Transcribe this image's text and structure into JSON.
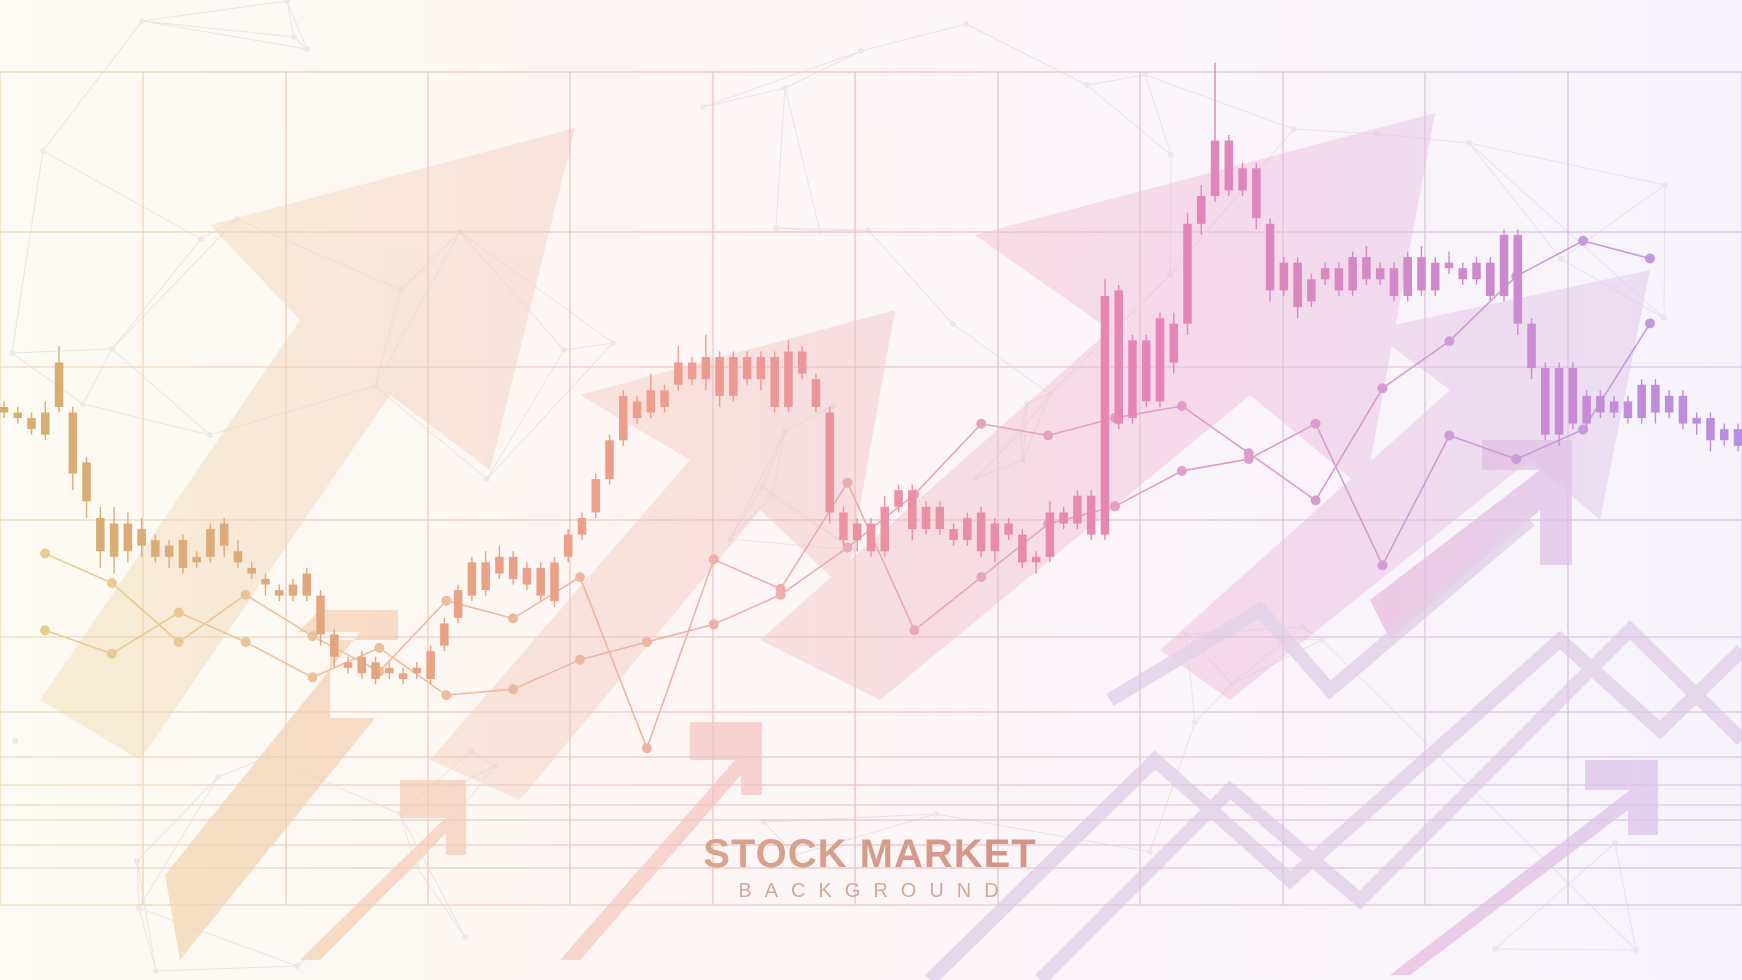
{
  "title": "STOCK MARKET",
  "subtitle": "BACKGROUND",
  "colors": {
    "gold": "#d4b070",
    "salmon": "#ee9e8c",
    "pink": "#e585b6",
    "purple": "#b98ee0",
    "grid": "#e3cbd6"
  },
  "chart_data": [
    {
      "type": "candlestick",
      "title": "",
      "xlabel": "",
      "ylabel": "",
      "axes_printed": false,
      "grid": true,
      "legend": "none",
      "ylim": [
        0,
        100
      ],
      "candles": [
        [
          51,
          50,
          52,
          49
        ],
        [
          50,
          49,
          51,
          48
        ],
        [
          49,
          47,
          50,
          46
        ],
        [
          46,
          50,
          52,
          45
        ],
        [
          51,
          59,
          62,
          50
        ],
        [
          50,
          39,
          51,
          36
        ],
        [
          41,
          34,
          42,
          31
        ],
        [
          31,
          25,
          33,
          22
        ],
        [
          30,
          24,
          33,
          21
        ],
        [
          30,
          25,
          32,
          23
        ],
        [
          26,
          29,
          31,
          24
        ],
        [
          27,
          24,
          28,
          23
        ],
        [
          24,
          26,
          27,
          22
        ],
        [
          27,
          22,
          28,
          21
        ],
        [
          24,
          23,
          25,
          22
        ],
        [
          24,
          29,
          30,
          23
        ],
        [
          30,
          26,
          31,
          24
        ],
        [
          25,
          23,
          27,
          22
        ],
        [
          21,
          22,
          23,
          20
        ],
        [
          20,
          19,
          21,
          17
        ],
        [
          17,
          18,
          19,
          16
        ],
        [
          17,
          19,
          20,
          16
        ],
        [
          21,
          17,
          22,
          16
        ],
        [
          17,
          10,
          18,
          8
        ],
        [
          10,
          6,
          11,
          4
        ],
        [
          5,
          4,
          6,
          3
        ],
        [
          6,
          3,
          7,
          2
        ],
        [
          5,
          2,
          6,
          1
        ],
        [
          4,
          3,
          5,
          2
        ],
        [
          3,
          2,
          4,
          1
        ],
        [
          3,
          4,
          5,
          2
        ],
        [
          2,
          7,
          8,
          1
        ],
        [
          8,
          12,
          13,
          7
        ],
        [
          13,
          18,
          19,
          12
        ],
        [
          17,
          23,
          24,
          16
        ],
        [
          23,
          18,
          25,
          17
        ],
        [
          21,
          24,
          26,
          20
        ],
        [
          24,
          20,
          25,
          19
        ],
        [
          19,
          22,
          23,
          18
        ],
        [
          22,
          17,
          23,
          16
        ],
        [
          16,
          23,
          24,
          15
        ],
        [
          24,
          28,
          29,
          23
        ],
        [
          28,
          31,
          32,
          27
        ],
        [
          32,
          38,
          39,
          31
        ],
        [
          38,
          45,
          46,
          37
        ],
        [
          45,
          53,
          54,
          44
        ],
        [
          52,
          49,
          53,
          48
        ],
        [
          50,
          54,
          57,
          49
        ],
        [
          54,
          51,
          55,
          50
        ],
        [
          55,
          59,
          62,
          54
        ],
        [
          59,
          56,
          60,
          55
        ],
        [
          56,
          60,
          64,
          54
        ],
        [
          60,
          53,
          61,
          51
        ],
        [
          53,
          60,
          61,
          52
        ],
        [
          60,
          56,
          61,
          55
        ],
        [
          56,
          60,
          61,
          54
        ],
        [
          60,
          51,
          61,
          50
        ],
        [
          51,
          61,
          63,
          50
        ],
        [
          61,
          57,
          62,
          56
        ],
        [
          56,
          51,
          57,
          50
        ],
        [
          50,
          32,
          51,
          30
        ],
        [
          32,
          27,
          33,
          26
        ],
        [
          27,
          30,
          31,
          25
        ],
        [
          30,
          25,
          31,
          24
        ],
        [
          25,
          33,
          35,
          24
        ],
        [
          33,
          36,
          37,
          32
        ],
        [
          36,
          29,
          37,
          27
        ],
        [
          29,
          33,
          34,
          28
        ],
        [
          33,
          29,
          34,
          28
        ],
        [
          29,
          27,
          30,
          26
        ],
        [
          27,
          31,
          32,
          26
        ],
        [
          32,
          25,
          33,
          24
        ],
        [
          25,
          30,
          31,
          23
        ],
        [
          30,
          28,
          31,
          27
        ],
        [
          28,
          23,
          29,
          22
        ],
        [
          23,
          24,
          25,
          21
        ],
        [
          24,
          32,
          34,
          23
        ],
        [
          32,
          30,
          33,
          29
        ],
        [
          30,
          35,
          36,
          29
        ],
        [
          35,
          28,
          36,
          27
        ],
        [
          28,
          71,
          74,
          27
        ],
        [
          72,
          48,
          73,
          47
        ],
        [
          49,
          63,
          64,
          48
        ],
        [
          63,
          52,
          64,
          51
        ],
        [
          52,
          67,
          68,
          51
        ],
        [
          59,
          66,
          68,
          57
        ],
        [
          66,
          84,
          86,
          64
        ],
        [
          84,
          89,
          91,
          82
        ],
        [
          89,
          99,
          113,
          88
        ],
        [
          99,
          90,
          100,
          89
        ],
        [
          90,
          94,
          95,
          89
        ],
        [
          94,
          85,
          95,
          83
        ],
        [
          84,
          72,
          85,
          70
        ],
        [
          72,
          77,
          78,
          71
        ],
        [
          77,
          69,
          78,
          67
        ],
        [
          70,
          74,
          75,
          69
        ],
        [
          74,
          76,
          77,
          73
        ],
        [
          76,
          72,
          77,
          71
        ],
        [
          72,
          78,
          79,
          71
        ],
        [
          78,
          74,
          80,
          73
        ],
        [
          74,
          76,
          77,
          73
        ],
        [
          76,
          71,
          77,
          70
        ],
        [
          71,
          78,
          79,
          70
        ],
        [
          78,
          72,
          80,
          71
        ],
        [
          72,
          77,
          78,
          71
        ],
        [
          77,
          76,
          79,
          75
        ],
        [
          76,
          74,
          77,
          73
        ],
        [
          74,
          77,
          78,
          73
        ],
        [
          77,
          71,
          78,
          70
        ],
        [
          71,
          82,
          83,
          70
        ],
        [
          82,
          66,
          83,
          64
        ],
        [
          66,
          58,
          67,
          56
        ],
        [
          58,
          46,
          59,
          45
        ],
        [
          46,
          58,
          59,
          44
        ],
        [
          58,
          48,
          59,
          47
        ],
        [
          48,
          53,
          54,
          47
        ],
        [
          53,
          50,
          54,
          49
        ],
        [
          50,
          52,
          53,
          49
        ],
        [
          52,
          49,
          53,
          48
        ],
        [
          49,
          55,
          56,
          48
        ],
        [
          55,
          50,
          56,
          48
        ],
        [
          50,
          53,
          54,
          49
        ],
        [
          53,
          48,
          54,
          47
        ],
        [
          48,
          49,
          50,
          46
        ],
        [
          49,
          45,
          50,
          43
        ],
        [
          45,
          47,
          48,
          44
        ],
        [
          47,
          44,
          48,
          43
        ]
      ]
    },
    {
      "type": "line",
      "name": "",
      "x": [
        0,
        1,
        2,
        3,
        4,
        5,
        6,
        7,
        8,
        9,
        10,
        11,
        12,
        13,
        14,
        15,
        16,
        17,
        18,
        19,
        20,
        21,
        22,
        23,
        24
      ],
      "values": [
        35,
        30,
        20,
        28,
        21,
        15,
        27,
        24,
        31,
        2,
        34,
        29,
        47,
        22,
        31,
        40,
        43,
        49,
        51,
        57,
        33,
        55,
        51,
        56,
        74
      ]
    },
    {
      "type": "line",
      "name": "",
      "x": [
        0,
        1,
        2,
        3,
        4,
        5,
        6,
        7,
        8,
        9,
        10,
        11,
        12,
        13,
        14,
        15,
        16,
        17,
        18,
        19,
        20,
        21,
        22,
        23,
        24
      ],
      "values": [
        22,
        18,
        25,
        20,
        14,
        19,
        11,
        12,
        17,
        20,
        23,
        28,
        36,
        45,
        57,
        55,
        58,
        60,
        52,
        44,
        63,
        71,
        82,
        88,
        85
      ]
    }
  ]
}
